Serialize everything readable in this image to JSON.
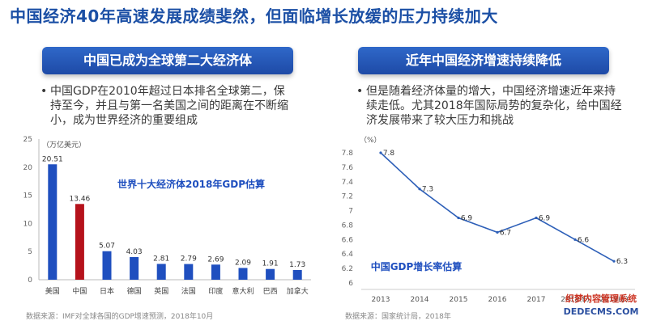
{
  "headline": "中国经济40年高速发展成绩斐然，但面临增长放缓的压力持续加大",
  "left_panel": {
    "banner": "中国已成为全球第二大经济体",
    "bullet": "中国GDP在2010年超过日本排名全球第二，保持至今，并且与第一名美国之间的距离在不断缩小，成为世界经济的重要组成",
    "source": "数据来源：IMF对全球各国的GDP增速预测，2018年10月"
  },
  "right_panel": {
    "banner": "近年中国经济增速持续降低",
    "bullet": "但是随着经济体量的增大，中国经济增速近年来持续走低。尤其2018年国际局势的复杂化，给中国经济发展带来了较大压力和挑战",
    "source": "数据来源：国家统计局，2018年"
  },
  "bullet_marker": "•",
  "watermark": {
    "line1": "织梦内容管理系统",
    "line2": "DEDECMS.COM"
  },
  "chart_data": [
    {
      "type": "bar",
      "title": "世界十大经济体2018年GDP估算",
      "ylabel": "（万亿美元）",
      "ylim": [
        0,
        25
      ],
      "yticks": [
        0,
        5,
        10,
        15,
        20,
        25
      ],
      "categories": [
        "美国",
        "中国",
        "日本",
        "德国",
        "英国",
        "法国",
        "印度",
        "意大利",
        "巴西",
        "加拿大"
      ],
      "values": [
        20.51,
        13.46,
        5.07,
        4.03,
        2.81,
        2.79,
        2.69,
        2.09,
        1.91,
        1.73
      ],
      "value_labels": [
        "20.51",
        "13.46",
        "5.07",
        "4.03",
        "2.81",
        "2.79",
        "2.69",
        "2.09",
        "1.91",
        "1.73"
      ],
      "highlight_index": 1,
      "colors": {
        "bar": "#1f4fbf",
        "highlight": "#b5121b",
        "title": "#1f4fbf"
      },
      "grid": false
    },
    {
      "type": "line",
      "title": "中国GDP增长率估算",
      "ylabel": "（%）",
      "ylim": [
        6,
        7.8
      ],
      "yticks": [
        "6",
        "6.2",
        "6.4",
        "6.6",
        "6.8",
        "7",
        "7.2",
        "7.4",
        "7.6",
        "7.8"
      ],
      "x": [
        "2013",
        "2014",
        "2015",
        "2016",
        "2017",
        "2018(E)",
        "2019(E)"
      ],
      "values": [
        7.8,
        7.3,
        6.9,
        6.7,
        6.9,
        6.6,
        6.3
      ],
      "value_labels": [
        "7.8",
        "7.3",
        "6.9",
        "6.7",
        "6.9",
        "6.6",
        "6.3"
      ],
      "colors": {
        "line": "#2d5fb8",
        "title": "#1f4fbf"
      },
      "grid": false
    }
  ]
}
